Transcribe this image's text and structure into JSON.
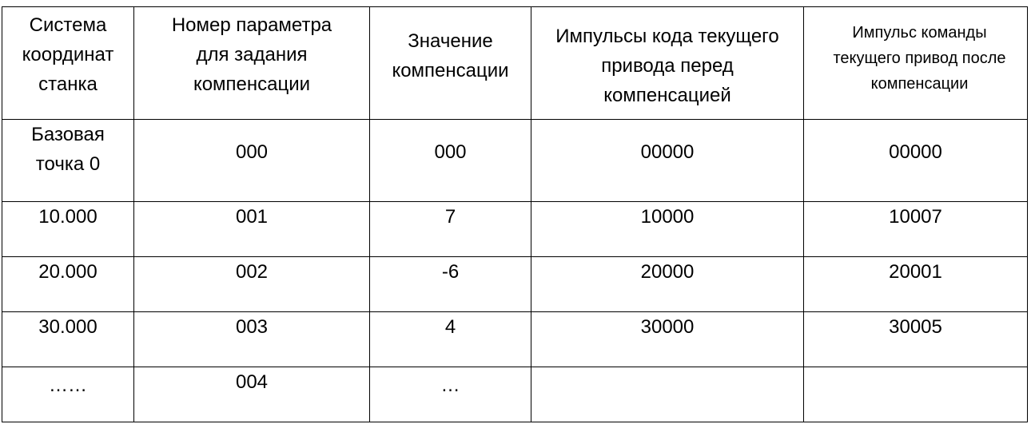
{
  "table": {
    "headers": [
      "Система координат станка",
      "Номер параметра для задания компенсации",
      "Значение компенсации",
      "Импульсы кода текущего привода перед компенсацией",
      "Импульс команды текущего привод после компенсации"
    ],
    "rows": [
      [
        "Базовая точка 0",
        "000",
        "000",
        "00000",
        "00000"
      ],
      [
        "10.000",
        "001",
        "7",
        "10000",
        "10007"
      ],
      [
        "20.000",
        "002",
        "-6",
        "20000",
        "20001"
      ],
      [
        "30.000",
        "003",
        "4",
        "30000",
        "30005"
      ],
      [
        "……",
        "004",
        "…",
        "",
        ""
      ]
    ]
  }
}
